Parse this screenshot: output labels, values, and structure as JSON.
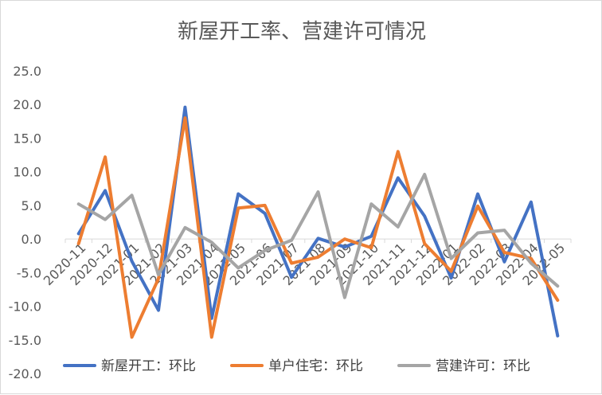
{
  "chart_data": {
    "type": "line",
    "title": "新屋开工率、营建许可情况",
    "categories": [
      "2020-11",
      "2020-12",
      "2021-01",
      "2021-02",
      "2021-03",
      "2021-04",
      "2021-05",
      "2021-06",
      "2021-07",
      "2021-08",
      "2021-09",
      "2021-10",
      "2021-11",
      "2021-12",
      "2022-01",
      "2022-02",
      "2022-03",
      "2022-04",
      "2022-05"
    ],
    "ylim": [
      -20,
      25
    ],
    "yticks": [
      "25.0",
      "20.0",
      "15.0",
      "10.0",
      "5.0",
      "0.0",
      "-5.0",
      "-10.0",
      "-15.0",
      "-20.0"
    ],
    "grid": false,
    "legend_position": "bottom",
    "series": [
      {
        "name": "新屋开工：环比",
        "color": "#4472C4",
        "values": [
          0.8,
          7.2,
          -3.3,
          -10.6,
          19.6,
          -11.8,
          6.7,
          3.8,
          -5.7,
          0.1,
          -1.2,
          0.4,
          9.1,
          3.4,
          -5.8,
          6.7,
          -3.4,
          5.5,
          -14.4
        ]
      },
      {
        "name": "单户住宅：环比",
        "color": "#ED7D31",
        "values": [
          -0.7,
          12.2,
          -14.6,
          -5.9,
          18.0,
          -14.6,
          4.6,
          5.0,
          -3.6,
          -2.7,
          0.0,
          -1.3,
          13.0,
          -0.7,
          -4.8,
          4.9,
          -2.0,
          -2.9,
          -9.1
        ]
      },
      {
        "name": "营建许可：环比",
        "color": "#A5A5A5",
        "values": [
          5.2,
          2.9,
          6.5,
          -5.3,
          1.7,
          -0.5,
          -4.3,
          -1.7,
          -0.2,
          7.0,
          -8.7,
          5.2,
          1.8,
          9.6,
          -2.9,
          0.9,
          1.3,
          -3.6,
          -7.0
        ]
      }
    ]
  }
}
